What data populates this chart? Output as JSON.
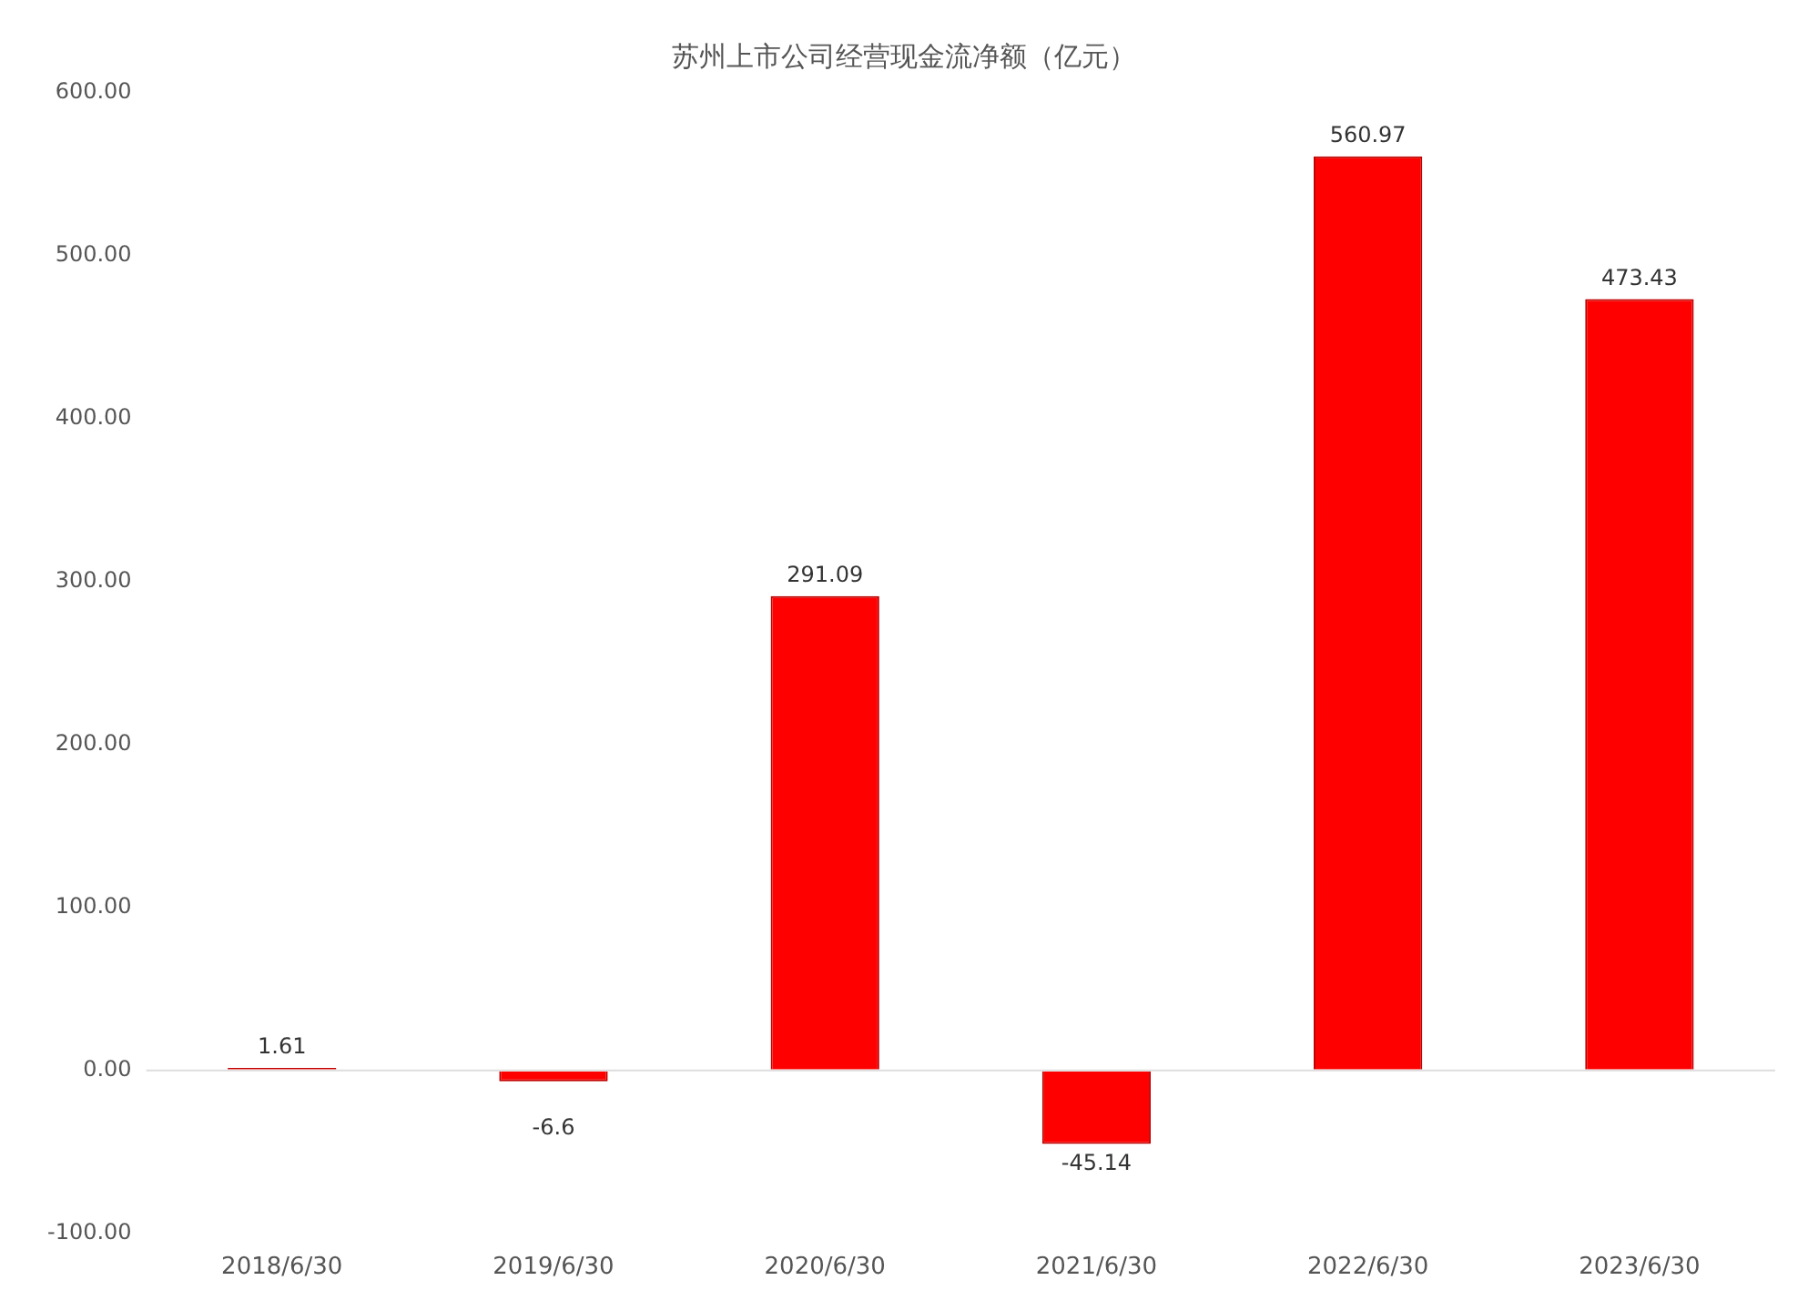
{
  "chart_data": {
    "type": "bar",
    "title": "苏州上市公司经营现金流净额（亿元）",
    "categories": [
      "2018/6/30",
      "2019/6/30",
      "2020/6/30",
      "2021/6/30",
      "2022/6/30",
      "2023/6/30"
    ],
    "series": [
      {
        "color": "#ff0000",
        "values": [
          1.61,
          -6.6,
          291.09,
          -45.14,
          560.97,
          473.43
        ]
      }
    ],
    "ylim": [
      -100,
      600
    ],
    "yticks": [
      {
        "value": -100,
        "label": "-100.00"
      },
      {
        "value": 0,
        "label": "0.00"
      },
      {
        "value": 100,
        "label": "100.00"
      },
      {
        "value": 200,
        "label": "200.00"
      },
      {
        "value": 300,
        "label": "300.00"
      },
      {
        "value": 400,
        "label": "400.00"
      },
      {
        "value": 500,
        "label": "500.00"
      },
      {
        "value": 600,
        "label": "600.00"
      }
    ],
    "ref_lines": [
      {
        "axis": "y",
        "value": 0,
        "color": "#dddddd"
      }
    ],
    "data_labels": true,
    "grid": false,
    "legend": false
  }
}
